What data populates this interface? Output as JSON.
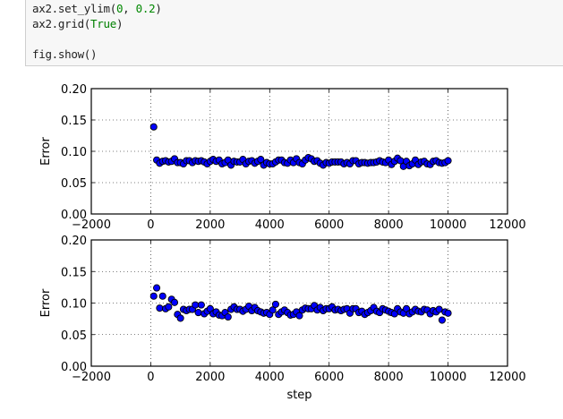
{
  "code_cell": {
    "lines": [
      {
        "parts": [
          {
            "t": "ax2.set_ylim(",
            "c": ""
          },
          {
            "t": "0",
            "c": "num"
          },
          {
            "t": ", ",
            "c": ""
          },
          {
            "t": "0.2",
            "c": "num"
          },
          {
            "t": ")",
            "c": ""
          }
        ]
      },
      {
        "parts": [
          {
            "t": "ax2.grid(",
            "c": ""
          },
          {
            "t": "True",
            "c": "kw"
          },
          {
            "t": ")",
            "c": ""
          }
        ]
      },
      {
        "parts": []
      },
      {
        "parts": [
          {
            "t": "fig.show()",
            "c": ""
          }
        ]
      }
    ]
  },
  "chart_data": [
    {
      "type": "scatter",
      "title": "",
      "xlabel": "",
      "ylabel": "Error",
      "xlim": [
        -2000,
        12000
      ],
      "ylim": [
        0,
        0.2
      ],
      "xticks": [
        "−2000",
        "0",
        "2000",
        "4000",
        "6000",
        "8000",
        "10000",
        "12000"
      ],
      "yticks": [
        "0.00",
        "0.05",
        "0.10",
        "0.15",
        "0.20"
      ],
      "grid": true,
      "marker_color": "#0000ff",
      "x": [
        100,
        200,
        300,
        400,
        500,
        600,
        700,
        800,
        900,
        1000,
        1100,
        1200,
        1300,
        1400,
        1500,
        1600,
        1700,
        1800,
        1900,
        2000,
        2100,
        2200,
        2300,
        2400,
        2500,
        2600,
        2700,
        2800,
        2900,
        3000,
        3100,
        3200,
        3300,
        3400,
        3500,
        3600,
        3700,
        3800,
        3900,
        4000,
        4100,
        4200,
        4300,
        4400,
        4500,
        4600,
        4700,
        4800,
        4900,
        5000,
        5100,
        5200,
        5300,
        5400,
        5500,
        5600,
        5700,
        5800,
        5900,
        6000,
        6100,
        6200,
        6300,
        6400,
        6500,
        6600,
        6700,
        6800,
        6900,
        7000,
        7100,
        7200,
        7300,
        7400,
        7500,
        7600,
        7700,
        7800,
        7900,
        8000,
        8100,
        8200,
        8300,
        8400,
        8500,
        8600,
        8700,
        8800,
        8900,
        9000,
        9100,
        9200,
        9300,
        9400,
        9500,
        9600,
        9700,
        9800,
        9900,
        10000
      ],
      "y": [
        0.139,
        0.086,
        0.081,
        0.084,
        0.085,
        0.083,
        0.084,
        0.088,
        0.082,
        0.082,
        0.08,
        0.085,
        0.085,
        0.082,
        0.085,
        0.084,
        0.085,
        0.083,
        0.08,
        0.084,
        0.087,
        0.084,
        0.086,
        0.08,
        0.082,
        0.086,
        0.078,
        0.084,
        0.083,
        0.083,
        0.087,
        0.08,
        0.084,
        0.085,
        0.081,
        0.084,
        0.087,
        0.078,
        0.082,
        0.08,
        0.08,
        0.083,
        0.086,
        0.086,
        0.082,
        0.081,
        0.086,
        0.082,
        0.088,
        0.082,
        0.08,
        0.086,
        0.09,
        0.088,
        0.084,
        0.085,
        0.081,
        0.078,
        0.082,
        0.081,
        0.083,
        0.083,
        0.083,
        0.083,
        0.08,
        0.082,
        0.08,
        0.085,
        0.085,
        0.08,
        0.082,
        0.082,
        0.081,
        0.082,
        0.082,
        0.083,
        0.085,
        0.083,
        0.082,
        0.086,
        0.079,
        0.084,
        0.089,
        0.085,
        0.076,
        0.084,
        0.077,
        0.08,
        0.086,
        0.079,
        0.083,
        0.084,
        0.08,
        0.079,
        0.084,
        0.085,
        0.082,
        0.081,
        0.082,
        0.085
      ]
    },
    {
      "type": "scatter",
      "title": "",
      "xlabel": "step",
      "ylabel": "Error",
      "xlim": [
        -2000,
        12000
      ],
      "ylim": [
        0,
        0.2
      ],
      "xticks": [
        "−2000",
        "0",
        "2000",
        "4000",
        "6000",
        "8000",
        "10000",
        "12000"
      ],
      "yticks": [
        "0.00",
        "0.05",
        "0.10",
        "0.15",
        "0.20"
      ],
      "grid": true,
      "marker_color": "#0000ff",
      "x": [
        100,
        200,
        300,
        400,
        500,
        600,
        700,
        800,
        900,
        1000,
        1100,
        1200,
        1300,
        1400,
        1500,
        1600,
        1700,
        1800,
        1900,
        2000,
        2100,
        2200,
        2300,
        2400,
        2500,
        2600,
        2700,
        2800,
        2900,
        3000,
        3100,
        3200,
        3300,
        3400,
        3500,
        3600,
        3700,
        3800,
        3900,
        4000,
        4100,
        4200,
        4300,
        4400,
        4500,
        4600,
        4700,
        4800,
        4900,
        5000,
        5100,
        5200,
        5300,
        5400,
        5500,
        5600,
        5700,
        5800,
        5900,
        6000,
        6100,
        6200,
        6300,
        6400,
        6500,
        6600,
        6700,
        6800,
        6900,
        7000,
        7100,
        7200,
        7300,
        7400,
        7500,
        7600,
        7700,
        7800,
        7900,
        8000,
        8100,
        8200,
        8300,
        8400,
        8500,
        8600,
        8700,
        8800,
        8900,
        9000,
        9100,
        9200,
        9300,
        9400,
        9500,
        9600,
        9700,
        9800,
        9900,
        10000
      ],
      "y": [
        0.111,
        0.124,
        0.092,
        0.111,
        0.091,
        0.094,
        0.106,
        0.101,
        0.082,
        0.076,
        0.09,
        0.088,
        0.09,
        0.09,
        0.097,
        0.085,
        0.097,
        0.083,
        0.087,
        0.091,
        0.083,
        0.086,
        0.081,
        0.08,
        0.085,
        0.078,
        0.09,
        0.094,
        0.09,
        0.09,
        0.087,
        0.09,
        0.095,
        0.088,
        0.093,
        0.088,
        0.086,
        0.084,
        0.085,
        0.082,
        0.089,
        0.098,
        0.082,
        0.086,
        0.089,
        0.085,
        0.081,
        0.082,
        0.086,
        0.08,
        0.089,
        0.092,
        0.091,
        0.091,
        0.096,
        0.089,
        0.093,
        0.088,
        0.091,
        0.091,
        0.094,
        0.089,
        0.09,
        0.088,
        0.09,
        0.091,
        0.084,
        0.091,
        0.091,
        0.085,
        0.087,
        0.082,
        0.085,
        0.088,
        0.093,
        0.087,
        0.085,
        0.091,
        0.089,
        0.087,
        0.085,
        0.083,
        0.091,
        0.086,
        0.084,
        0.091,
        0.083,
        0.086,
        0.09,
        0.087,
        0.086,
        0.09,
        0.089,
        0.083,
        0.088,
        0.086,
        0.09,
        0.073,
        0.086,
        0.084
      ]
    }
  ]
}
